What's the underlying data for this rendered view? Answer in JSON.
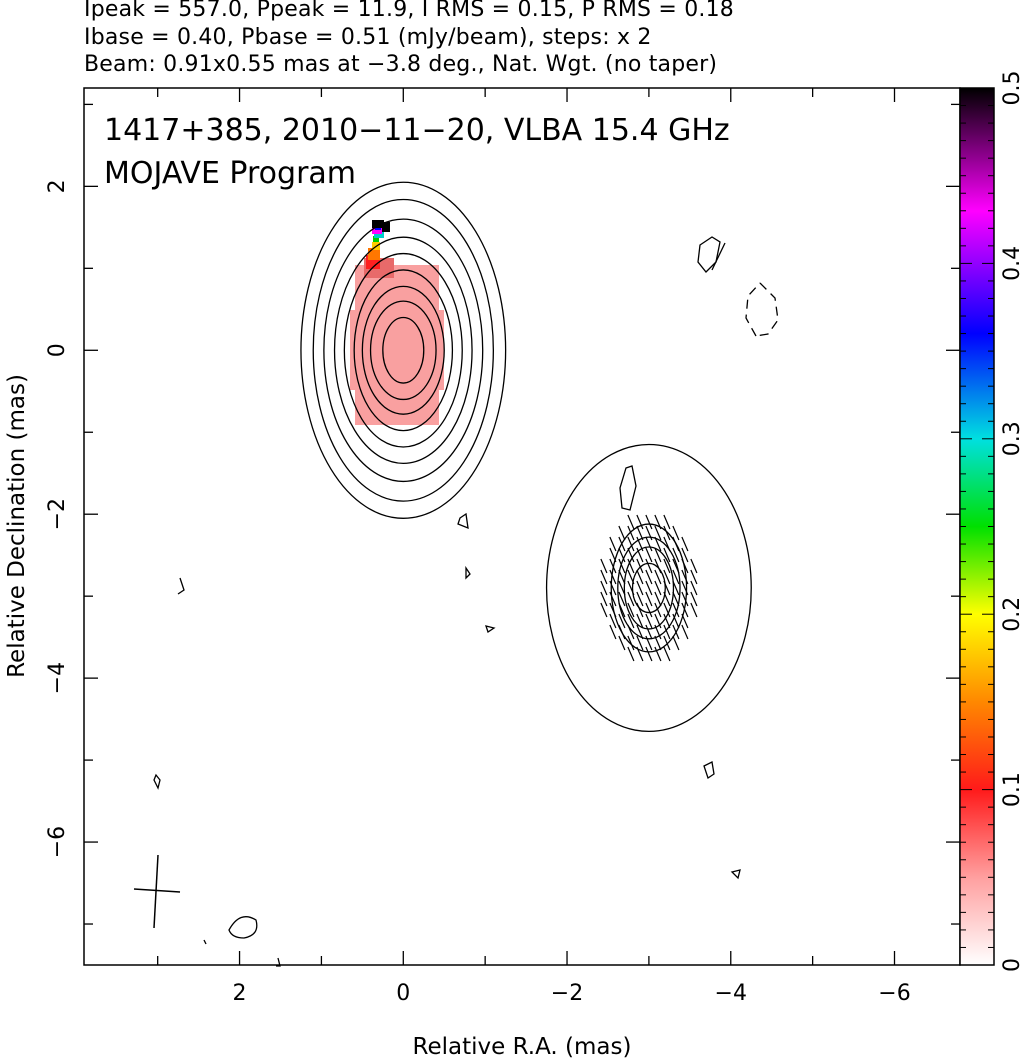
{
  "header": {
    "line1": "Ipeak = 557.0, Ppeak = 11.9, I RMS = 0.15, P RMS = 0.18",
    "line2": "Ibase = 0.40, Pbase = 0.51 (mJy/beam), steps: x 2",
    "line3": "Beam: 0.91x0.55 mas at −3.8 deg., Nat. Wgt. (no taper)"
  },
  "chart_data": {
    "type": "heatmap",
    "title": "1417+385, 2010−11−20, VLBA 15.4 GHz",
    "subtitle": "MOJAVE Program",
    "xlabel": "Relative R.A. (mas)",
    "ylabel": "Relative Declination (mas)",
    "xlim": [
      3.9,
      -6.8
    ],
    "ylim": [
      -7.5,
      3.2
    ],
    "x_ticks": [
      2,
      0,
      -2,
      -4,
      -6
    ],
    "x_tick_labels": [
      "2",
      "0",
      "−2",
      "−4",
      "−6"
    ],
    "y_ticks": [
      2,
      0,
      -2,
      -4,
      -6
    ],
    "y_tick_labels": [
      "2",
      "0",
      "−2",
      "−4",
      "−6"
    ],
    "colorbar": {
      "min": 0,
      "max": 0.5,
      "ticks": [
        0,
        0.1,
        0.2,
        0.3,
        0.4,
        0.5
      ],
      "tick_labels": [
        "0",
        "0.1",
        "0.2",
        "0.3",
        "0.4",
        "0.5"
      ],
      "colors": [
        "#ffffff",
        "#ff9f9f",
        "#ff1a1a",
        "#ff8800",
        "#ffff00",
        "#00e000",
        "#00e0e0",
        "#0000ff",
        "#ff00ff",
        "#000000"
      ]
    },
    "core": {
      "x": 0.0,
      "y": 0.0,
      "contour_radii_mas": [
        [
          0.25,
          0.4
        ],
        [
          0.4,
          0.6
        ],
        [
          0.5,
          0.78
        ],
        [
          0.6,
          0.98
        ],
        [
          0.72,
          1.18
        ],
        [
          0.84,
          1.38
        ],
        [
          0.97,
          1.6
        ],
        [
          1.1,
          1.84
        ],
        [
          1.25,
          2.05
        ]
      ]
    },
    "jet_component": {
      "x": -3.0,
      "y": -2.9,
      "contour_radii_mas": [
        [
          0.2,
          0.3
        ],
        [
          0.3,
          0.5
        ],
        [
          0.38,
          0.62
        ],
        [
          0.46,
          0.78
        ],
        [
          1.25,
          1.75
        ]
      ]
    },
    "beam": {
      "major_mas": 0.91,
      "minor_mas": 0.55,
      "pa_deg": -3.8,
      "center": [
        3.0,
        -6.5
      ]
    }
  }
}
